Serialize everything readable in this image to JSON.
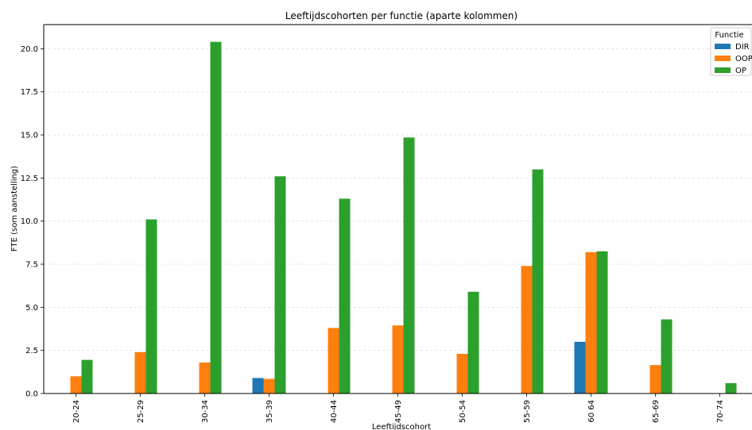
{
  "chart_data": {
    "type": "bar",
    "title": "Leeftijdscohorten per functie (aparte kolommen)",
    "xlabel": "Leeftijdscohort",
    "ylabel": "FTE (som aanstelling)",
    "ylim": [
      0,
      21.4
    ],
    "yticks": [
      "0.0",
      "2.5",
      "5.0",
      "7.5",
      "10.0",
      "12.5",
      "15.0",
      "17.5",
      "20.0"
    ],
    "grid": "horizontal-dashed",
    "legend_title": "Functie",
    "legend_position": "top-right",
    "categories": [
      "20-24",
      "25-29",
      "30-34",
      "35-39",
      "40-44",
      "45-49",
      "50-54",
      "55-59",
      "60 64",
      "65-69",
      "70-74"
    ],
    "series": [
      {
        "name": "DIR",
        "color": "#1f77b4",
        "values": [
          0,
          0,
          0,
          0.9,
          0,
          0,
          0,
          0,
          3.0,
          0,
          0
        ]
      },
      {
        "name": "OOP",
        "color": "#ff7f0e",
        "values": [
          1.0,
          2.4,
          1.8,
          0.85,
          3.8,
          3.95,
          2.3,
          7.4,
          8.2,
          1.65,
          0
        ]
      },
      {
        "name": "OP",
        "color": "#2ca02c",
        "values": [
          1.95,
          10.1,
          20.4,
          12.6,
          11.3,
          14.85,
          5.9,
          13.0,
          8.25,
          4.3,
          0.6
        ]
      }
    ]
  }
}
